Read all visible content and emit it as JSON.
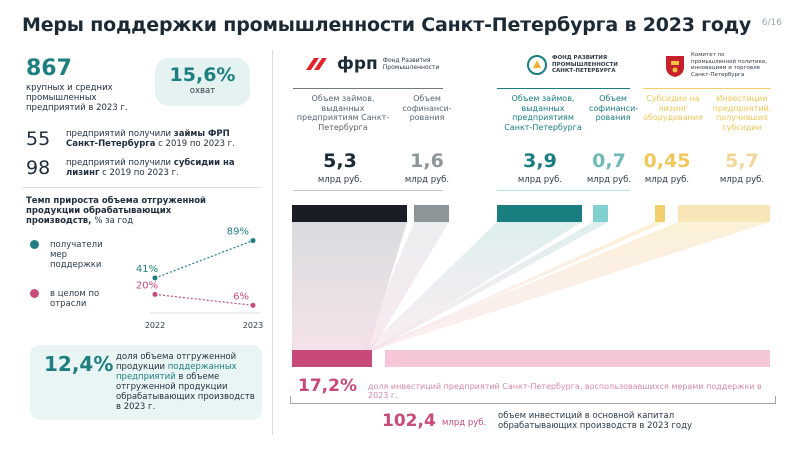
{
  "header": {
    "title": "Меры поддержки промышленности Санкт-Петербурга в 2023 году",
    "page": "6/16"
  },
  "left": {
    "stat1": {
      "value": "867",
      "text": "крупных и средних промышленных предприятий в 2023 г."
    },
    "coverage": {
      "value": "15,6%",
      "label": "охват"
    },
    "stat2": {
      "value": "55",
      "text_a": "предприятий получили ",
      "text_b": "займы ФРП",
      "text_c": "Санкт-Петербурга",
      "text_d": " с 2019 по 2023 г."
    },
    "stat3": {
      "value": "98",
      "text_a": "предприятий получили ",
      "text_b": "субсидии на лизинг",
      "text_c": " с 2019 по 2023 г."
    },
    "growth": {
      "title": "Темп прироста объема отгруженной продукции обрабатывающих производств,",
      "unit": "% за год",
      "legend": [
        {
          "label": "получатели мер поддержки",
          "color": "#1f7f80"
        },
        {
          "label": "в целом по отрасли",
          "color": "#c64a7a"
        }
      ]
    },
    "share": {
      "value": "12,4%",
      "text_a": "доля объема отгруженной продукции ",
      "text_b": "поддержанных предприятий",
      "text_c": " в объеме отгруженной продукции обрабатывающих производств в 2023 г."
    }
  },
  "chart_data": {
    "type": "line",
    "x": [
      "2022",
      "2023"
    ],
    "series": [
      {
        "name": "получатели мер поддержки",
        "values": [
          41,
          89
        ],
        "labels": [
          "41%",
          "89%"
        ],
        "color": "#1f7f80"
      },
      {
        "name": "в целом по отрасли",
        "values": [
          20,
          6
        ],
        "labels": [
          "20%",
          "6%"
        ],
        "color": "#c64a7a"
      }
    ]
  },
  "orgs": {
    "frp": {
      "logo_text": "фрп",
      "name": "Фонд Развития Промышленности"
    },
    "frp_spb": {
      "name": "ФОНД РАЗВИТИЯ ПРОМЫШЛЕННОСТИ САНКТ-ПЕТЕРБУРГА"
    },
    "committee": {
      "name": "Комитет по промышленной политике, инновациям и торговле Санкт-Петербурга"
    }
  },
  "columns": [
    {
      "head": "Объем займов, выданных предприятиям Санкт-Петербурга",
      "value": "5,3",
      "unit": "млрд руб.",
      "color": "#1b1d26",
      "text_color": "#1c2a36"
    },
    {
      "head": "Объем софинанси-рования",
      "value": "1,6",
      "unit": "млрд руб.",
      "color": "#8d9599",
      "text_color": "#8d9599"
    },
    {
      "head": "Объем займов, выданных предприятиям Санкт-Петербурга",
      "value": "3,9",
      "unit": "млрд руб.",
      "color": "#1a7d7f",
      "text_color": "#1a7d7f"
    },
    {
      "head": "Объем софинанси-рования",
      "value": "0,7",
      "unit": "млрд руб.",
      "color": "#7fd0cf",
      "text_color": "#6fb9b8"
    },
    {
      "head": "Субсидии на лизинг оборудования",
      "value": "0,45",
      "unit": "млрд руб.",
      "color": "#f2cf6e",
      "text_color": "#f0c75a"
    },
    {
      "head": "Инвестиции предприятий, получивших субсидии",
      "value": "5,7",
      "unit": "млрд руб.",
      "color": "#f8e6b8",
      "text_color": "#f3d79a"
    }
  ],
  "bottom": {
    "share_value": "17,2%",
    "share_text": "доля инвестиций предприятий Санкт-Петербурга, воспользовавшихся мерами поддержки в 2023 г.",
    "total_value": "102,4",
    "total_unit": "млрд руб.",
    "total_text": "объем инвестиций в основной капитал обрабатывающих производств в 2023 году",
    "bar_colors": {
      "supported": "#c84a7a",
      "total": "#f5c6d8"
    }
  }
}
